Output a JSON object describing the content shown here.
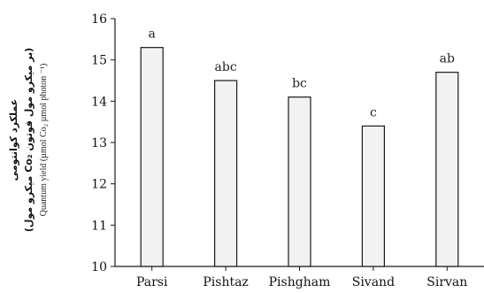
{
  "chart_data": {
    "type": "bar",
    "title": "",
    "categories": [
      "Parsi",
      "Pishtaz",
      "Pishgham",
      "Sivand",
      "Sirvan"
    ],
    "values": [
      15.3,
      14.5,
      14.1,
      13.4,
      14.7
    ],
    "significance_letters": [
      "a",
      "abc",
      "bc",
      "c",
      "ab"
    ],
    "ylim": [
      10,
      16
    ],
    "yticks": [
      10,
      11,
      12,
      13,
      14,
      15,
      16
    ],
    "grid": false,
    "xlabel": "",
    "ylabel": {
      "line1": "عملکرد کوانتومی",
      "line2": "(میکرو مول Co₂ بر میکرو مول فوتون)",
      "line3": "Quantum yield (µmol Co₂ µmol photon ⁻¹)"
    },
    "colors": {
      "bar_fill": "#f2f2f2",
      "bar_stroke": "#1a1a1a",
      "axis": "#1a1a1a"
    }
  }
}
